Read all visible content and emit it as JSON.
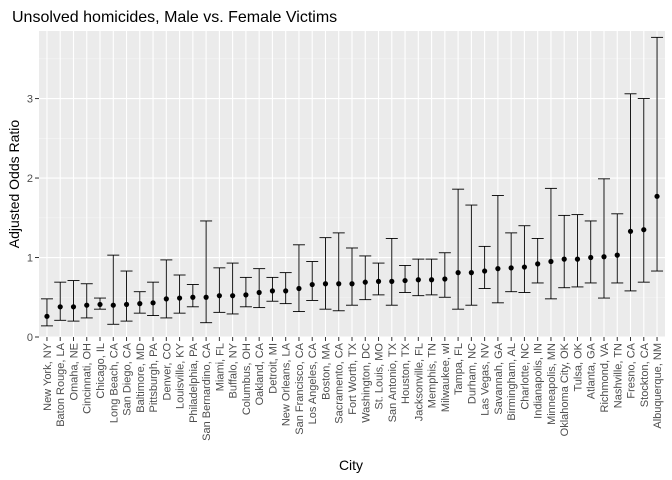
{
  "chart_data": {
    "type": "scatter",
    "title": "Unsolved homicides, Male vs. Female Victims",
    "xlabel": "City",
    "ylabel": "Adjusted Odds Ratio",
    "ylim": [
      0,
      3.85
    ],
    "yticks": [
      0,
      1,
      2,
      3
    ],
    "grid": true,
    "categories": [
      "New York, NY",
      "Baton Rouge, LA",
      "Omaha, NE",
      "Cincinnati, OH",
      "Chicago, IL",
      "Long Beach, CA",
      "San Diego, CA",
      "Baltimore, MD",
      "Pittsburgh, PA",
      "Denver, CO",
      "Louisville, KY",
      "Philadelphia, PA",
      "San Bernardino, CA",
      "Miami, FL",
      "Buffalo, NY",
      "Columbus, OH",
      "Oakland, CA",
      "Detroit, MI",
      "New Orleans, LA",
      "San Francisco, CA",
      "Los Angeles, CA",
      "Boston, MA",
      "Sacramento, CA",
      "Fort Worth, TX",
      "Washington, DC",
      "St. Louis, MO",
      "San Antonio, TX",
      "Houston, TX",
      "Jacksonville, FL",
      "Memphis, TN",
      "Milwaukee, wI",
      "Tampa, FL",
      "Durham, NC",
      "Las Vegas, NV",
      "Savannah, GA",
      "Birmingham, AL",
      "Charlotte, NC",
      "Indianapolis, IN",
      "Minneapolis, MN",
      "Oklahoma City, OK",
      "Tulsa, OK",
      "Atlanta, GA",
      "Richmond, VA",
      "Nashville, TN",
      "Fresno, CA",
      "Stockton, CA",
      "Albuquerque, NM"
    ],
    "series": [
      {
        "values": [
          0.26,
          0.38,
          0.38,
          0.4,
          0.41,
          0.4,
          0.41,
          0.42,
          0.43,
          0.48,
          0.49,
          0.5,
          0.5,
          0.52,
          0.52,
          0.53,
          0.56,
          0.58,
          0.58,
          0.61,
          0.66,
          0.67,
          0.67,
          0.67,
          0.69,
          0.7,
          0.7,
          0.71,
          0.72,
          0.72,
          0.73,
          0.81,
          0.81,
          0.83,
          0.86,
          0.87,
          0.88,
          0.92,
          0.95,
          0.98,
          0.98,
          1.0,
          1.01,
          1.03,
          1.33,
          1.35,
          1.77
        ],
        "lower": [
          0.14,
          0.21,
          0.2,
          0.24,
          0.35,
          0.16,
          0.2,
          0.3,
          0.27,
          0.24,
          0.3,
          0.38,
          0.18,
          0.31,
          0.29,
          0.38,
          0.37,
          0.45,
          0.42,
          0.32,
          0.46,
          0.35,
          0.33,
          0.4,
          0.47,
          0.53,
          0.4,
          0.56,
          0.52,
          0.53,
          0.5,
          0.35,
          0.4,
          0.61,
          0.43,
          0.57,
          0.56,
          0.68,
          0.48,
          0.62,
          0.63,
          0.68,
          0.49,
          0.68,
          0.58,
          0.69,
          0.83
        ],
        "upper": [
          0.48,
          0.69,
          0.71,
          0.67,
          0.49,
          1.03,
          0.83,
          0.57,
          0.69,
          0.97,
          0.78,
          0.66,
          1.46,
          0.87,
          0.93,
          0.75,
          0.86,
          0.75,
          0.81,
          1.16,
          0.95,
          1.25,
          1.31,
          1.12,
          1.02,
          0.93,
          1.24,
          0.9,
          0.98,
          0.98,
          1.06,
          1.86,
          1.66,
          1.14,
          1.78,
          1.31,
          1.4,
          1.24,
          1.87,
          1.53,
          1.54,
          1.46,
          1.99,
          1.55,
          3.06,
          3.0,
          3.77
        ]
      }
    ]
  }
}
